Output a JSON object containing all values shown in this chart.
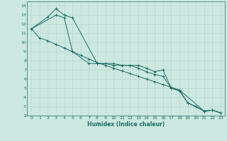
{
  "bg_color": "#cce8e0",
  "grid_color": "#b8d8d0",
  "line_color": "#1a6e64",
  "xlabel": "Humidex (Indice chaleur)",
  "xlim": [
    -0.5,
    23.5
  ],
  "ylim": [
    2,
    14.5
  ],
  "xticks": [
    0,
    1,
    2,
    3,
    4,
    5,
    6,
    7,
    8,
    9,
    10,
    11,
    12,
    13,
    14,
    15,
    16,
    17,
    18,
    19,
    20,
    21,
    22,
    23
  ],
  "yticks": [
    2,
    3,
    4,
    5,
    6,
    7,
    8,
    9,
    10,
    11,
    12,
    13,
    14
  ],
  "line1": {
    "x": [
      0,
      2,
      3,
      4,
      5,
      8,
      9,
      10,
      11,
      12,
      13,
      14,
      15,
      16,
      17,
      18,
      21,
      22,
      23
    ],
    "y": [
      11.5,
      12.8,
      13.7,
      13.0,
      12.7,
      7.7,
      7.7,
      7.7,
      7.5,
      7.5,
      7.5,
      7.2,
      6.8,
      7.0,
      5.0,
      4.8,
      2.5,
      2.6,
      2.3
    ]
  },
  "line2": {
    "x": [
      0,
      1,
      2,
      3,
      4,
      5,
      6,
      7,
      8,
      9,
      10,
      11,
      12,
      13,
      14,
      15,
      16,
      17,
      18,
      19,
      20,
      21,
      22,
      23
    ],
    "y": [
      11.5,
      10.5,
      10.2,
      9.8,
      9.4,
      9.0,
      8.6,
      8.2,
      7.8,
      7.5,
      7.2,
      6.9,
      6.6,
      6.3,
      6.0,
      5.7,
      5.4,
      5.1,
      4.8,
      3.4,
      3.0,
      2.5,
      2.6,
      2.3
    ]
  },
  "line3": {
    "x": [
      0,
      3,
      4,
      5,
      7,
      8,
      9,
      10,
      11,
      12,
      13,
      14,
      15,
      16,
      17,
      18,
      19,
      21,
      22,
      23
    ],
    "y": [
      11.5,
      13.0,
      12.7,
      9.0,
      7.7,
      7.7,
      7.7,
      7.5,
      7.5,
      7.5,
      7.2,
      6.8,
      6.5,
      6.3,
      5.0,
      4.7,
      3.4,
      2.5,
      2.6,
      2.3
    ]
  }
}
